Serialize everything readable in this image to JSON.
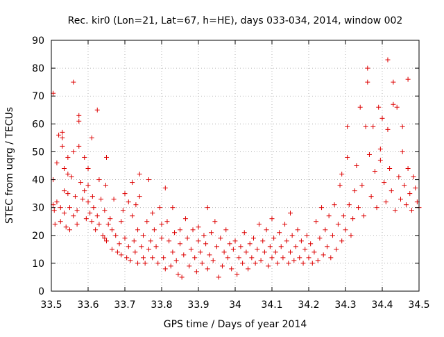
{
  "chart_data": {
    "type": "scatter",
    "title": "Rec. kir0 (Lon=21, Lat=67, h=HE), days 033-034, 2014, window 002",
    "xlabel": "GPS time / Days of year 2014",
    "ylabel": "STEC from uqrg / TECUs",
    "xlim": [
      33.5,
      34.5
    ],
    "ylim": [
      0,
      90
    ],
    "grid": true,
    "xticks": [
      33.5,
      33.6,
      33.7,
      33.8,
      33.9,
      34.0,
      34.1,
      34.2,
      34.3,
      34.4,
      34.5
    ],
    "xtick_labels": [
      "33.5",
      "33.6",
      "33.7",
      "33.8",
      "33.9",
      "34",
      "34.1",
      "34.2",
      "34.3",
      "34.4",
      "34.5"
    ],
    "yticks": [
      0,
      10,
      20,
      30,
      40,
      50,
      60,
      70,
      80,
      90
    ],
    "ytick_labels": [
      "0",
      "10",
      "20",
      "30",
      "40",
      "50",
      "60",
      "70",
      "80",
      "90"
    ],
    "marker": "+",
    "color": "#dd0000",
    "series": [
      {
        "name": "STEC",
        "points": [
          [
            33.505,
            71
          ],
          [
            33.505,
            40
          ],
          [
            33.505,
            31
          ],
          [
            33.508,
            29
          ],
          [
            33.51,
            24
          ],
          [
            33.515,
            32
          ],
          [
            33.515,
            46
          ],
          [
            33.52,
            56
          ],
          [
            33.525,
            30
          ],
          [
            33.525,
            25
          ],
          [
            33.53,
            57
          ],
          [
            33.53,
            55
          ],
          [
            33.53,
            52
          ],
          [
            33.535,
            44
          ],
          [
            33.535,
            36
          ],
          [
            33.535,
            28
          ],
          [
            33.54,
            23
          ],
          [
            33.545,
            48
          ],
          [
            33.545,
            42
          ],
          [
            33.545,
            35
          ],
          [
            33.55,
            30
          ],
          [
            33.55,
            22
          ],
          [
            33.555,
            41
          ],
          [
            33.56,
            75
          ],
          [
            33.56,
            50
          ],
          [
            33.56,
            27
          ],
          [
            33.565,
            34
          ],
          [
            33.57,
            24
          ],
          [
            33.57,
            29
          ],
          [
            33.575,
            63
          ],
          [
            33.575,
            61
          ],
          [
            33.575,
            52
          ],
          [
            33.58,
            39
          ],
          [
            33.585,
            33
          ],
          [
            33.59,
            48
          ],
          [
            33.59,
            36
          ],
          [
            33.595,
            26
          ],
          [
            33.6,
            44
          ],
          [
            33.6,
            38
          ],
          [
            33.6,
            32
          ],
          [
            33.605,
            28
          ],
          [
            33.61,
            55
          ],
          [
            33.61,
            25
          ],
          [
            33.612,
            34
          ],
          [
            33.615,
            30
          ],
          [
            33.62,
            22
          ],
          [
            33.625,
            65
          ],
          [
            33.625,
            27
          ],
          [
            33.63,
            40
          ],
          [
            33.63,
            24
          ],
          [
            33.635,
            33
          ],
          [
            33.64,
            20
          ],
          [
            33.645,
            19
          ],
          [
            33.645,
            29
          ],
          [
            33.648,
            38
          ],
          [
            33.65,
            48
          ],
          [
            33.65,
            18
          ],
          [
            33.655,
            24
          ],
          [
            33.66,
            26
          ],
          [
            33.665,
            22
          ],
          [
            33.665,
            15
          ],
          [
            33.67,
            33
          ],
          [
            33.675,
            20
          ],
          [
            33.68,
            14
          ],
          [
            33.685,
            17
          ],
          [
            33.69,
            25
          ],
          [
            33.69,
            13
          ],
          [
            33.695,
            29
          ],
          [
            33.7,
            35
          ],
          [
            33.7,
            19
          ],
          [
            33.705,
            12
          ],
          [
            33.71,
            32
          ],
          [
            33.71,
            16
          ],
          [
            33.715,
            11
          ],
          [
            33.72,
            39
          ],
          [
            33.72,
            27
          ],
          [
            33.725,
            18
          ],
          [
            33.728,
            14
          ],
          [
            33.73,
            31
          ],
          [
            33.735,
            22
          ],
          [
            33.735,
            10
          ],
          [
            33.74,
            42
          ],
          [
            33.74,
            34
          ],
          [
            33.745,
            16
          ],
          [
            33.75,
            20
          ],
          [
            33.75,
            12
          ],
          [
            33.755,
            10
          ],
          [
            33.76,
            25
          ],
          [
            33.765,
            40
          ],
          [
            33.765,
            15
          ],
          [
            33.77,
            18
          ],
          [
            33.775,
            28
          ],
          [
            33.775,
            12
          ],
          [
            33.78,
            22
          ],
          [
            33.785,
            16
          ],
          [
            33.79,
            10
          ],
          [
            33.795,
            30
          ],
          [
            33.8,
            24
          ],
          [
            33.8,
            19
          ],
          [
            33.805,
            12
          ],
          [
            33.81,
            37
          ],
          [
            33.81,
            8
          ],
          [
            33.815,
            25
          ],
          [
            33.82,
            18
          ],
          [
            33.825,
            9
          ],
          [
            33.83,
            30
          ],
          [
            33.83,
            14
          ],
          [
            33.835,
            21
          ],
          [
            33.84,
            11
          ],
          [
            33.845,
            6
          ],
          [
            33.85,
            17
          ],
          [
            33.85,
            22
          ],
          [
            33.855,
            5
          ],
          [
            33.86,
            13
          ],
          [
            33.865,
            26
          ],
          [
            33.87,
            19
          ],
          [
            33.875,
            9
          ],
          [
            33.88,
            15
          ],
          [
            33.885,
            22
          ],
          [
            33.89,
            12
          ],
          [
            33.895,
            7
          ],
          [
            33.9,
            18
          ],
          [
            33.9,
            23
          ],
          [
            33.905,
            14
          ],
          [
            33.91,
            10
          ],
          [
            33.915,
            20
          ],
          [
            33.92,
            17
          ],
          [
            33.925,
            30
          ],
          [
            33.925,
            8
          ],
          [
            33.93,
            13
          ],
          [
            33.935,
            21
          ],
          [
            33.94,
            11
          ],
          [
            33.945,
            25
          ],
          [
            33.95,
            16
          ],
          [
            33.955,
            5
          ],
          [
            33.96,
            19
          ],
          [
            33.965,
            9
          ],
          [
            33.97,
            14
          ],
          [
            33.975,
            22
          ],
          [
            33.98,
            12
          ],
          [
            33.985,
            17
          ],
          [
            33.99,
            8
          ],
          [
            33.995,
            15
          ],
          [
            34.0,
            18
          ],
          [
            34.005,
            6
          ],
          [
            34.01,
            12
          ],
          [
            34.015,
            16
          ],
          [
            34.02,
            10
          ],
          [
            34.025,
            21
          ],
          [
            34.03,
            14
          ],
          [
            34.035,
            8
          ],
          [
            34.04,
            17
          ],
          [
            34.045,
            12
          ],
          [
            34.05,
            19
          ],
          [
            34.055,
            10
          ],
          [
            34.06,
            15
          ],
          [
            34.065,
            24
          ],
          [
            34.07,
            11
          ],
          [
            34.075,
            18
          ],
          [
            34.08,
            14
          ],
          [
            34.085,
            22
          ],
          [
            34.09,
            9
          ],
          [
            34.095,
            16
          ],
          [
            34.1,
            26
          ],
          [
            34.1,
            12
          ],
          [
            34.105,
            19
          ],
          [
            34.11,
            14
          ],
          [
            34.115,
            10
          ],
          [
            34.12,
            21
          ],
          [
            34.125,
            16
          ],
          [
            34.13,
            12
          ],
          [
            34.135,
            24
          ],
          [
            34.14,
            18
          ],
          [
            34.145,
            10
          ],
          [
            34.15,
            28
          ],
          [
            34.15,
            14
          ],
          [
            34.155,
            20
          ],
          [
            34.16,
            11
          ],
          [
            34.165,
            16
          ],
          [
            34.17,
            22
          ],
          [
            34.175,
            12
          ],
          [
            34.18,
            18
          ],
          [
            34.185,
            10
          ],
          [
            34.19,
            15
          ],
          [
            34.195,
            20
          ],
          [
            34.2,
            12
          ],
          [
            34.205,
            17
          ],
          [
            34.21,
            10
          ],
          [
            34.215,
            14
          ],
          [
            34.22,
            25
          ],
          [
            34.225,
            11
          ],
          [
            34.23,
            19
          ],
          [
            34.235,
            30
          ],
          [
            34.24,
            13
          ],
          [
            34.245,
            22
          ],
          [
            34.25,
            16
          ],
          [
            34.255,
            27
          ],
          [
            34.26,
            12
          ],
          [
            34.265,
            20
          ],
          [
            34.27,
            31
          ],
          [
            34.275,
            15
          ],
          [
            34.28,
            24
          ],
          [
            34.285,
            38
          ],
          [
            34.29,
            18
          ],
          [
            34.29,
            42
          ],
          [
            34.295,
            27
          ],
          [
            34.3,
            22
          ],
          [
            34.305,
            59
          ],
          [
            34.305,
            48
          ],
          [
            34.31,
            31
          ],
          [
            34.315,
            20
          ],
          [
            34.32,
            26
          ],
          [
            34.325,
            36
          ],
          [
            34.33,
            45
          ],
          [
            34.335,
            30
          ],
          [
            34.34,
            66
          ],
          [
            34.345,
            38
          ],
          [
            34.35,
            27
          ],
          [
            34.355,
            59
          ],
          [
            34.36,
            80
          ],
          [
            34.36,
            75
          ],
          [
            34.365,
            49
          ],
          [
            34.37,
            34
          ],
          [
            34.375,
            59
          ],
          [
            34.38,
            43
          ],
          [
            34.385,
            30
          ],
          [
            34.39,
            66
          ],
          [
            34.395,
            51
          ],
          [
            34.395,
            47
          ],
          [
            34.4,
            62
          ],
          [
            34.405,
            39
          ],
          [
            34.41,
            32
          ],
          [
            34.415,
            83
          ],
          [
            34.415,
            58
          ],
          [
            34.42,
            44
          ],
          [
            34.425,
            36
          ],
          [
            34.43,
            75
          ],
          [
            34.43,
            67
          ],
          [
            34.435,
            29
          ],
          [
            34.44,
            66
          ],
          [
            34.445,
            41
          ],
          [
            34.45,
            33
          ],
          [
            34.455,
            59
          ],
          [
            34.455,
            50
          ],
          [
            34.46,
            38
          ],
          [
            34.465,
            31
          ],
          [
            34.47,
            76
          ],
          [
            34.47,
            44
          ],
          [
            34.475,
            35
          ],
          [
            34.48,
            29
          ],
          [
            34.485,
            41
          ],
          [
            34.49,
            37
          ],
          [
            34.495,
            32
          ],
          [
            34.5,
            30
          ]
        ]
      }
    ]
  }
}
